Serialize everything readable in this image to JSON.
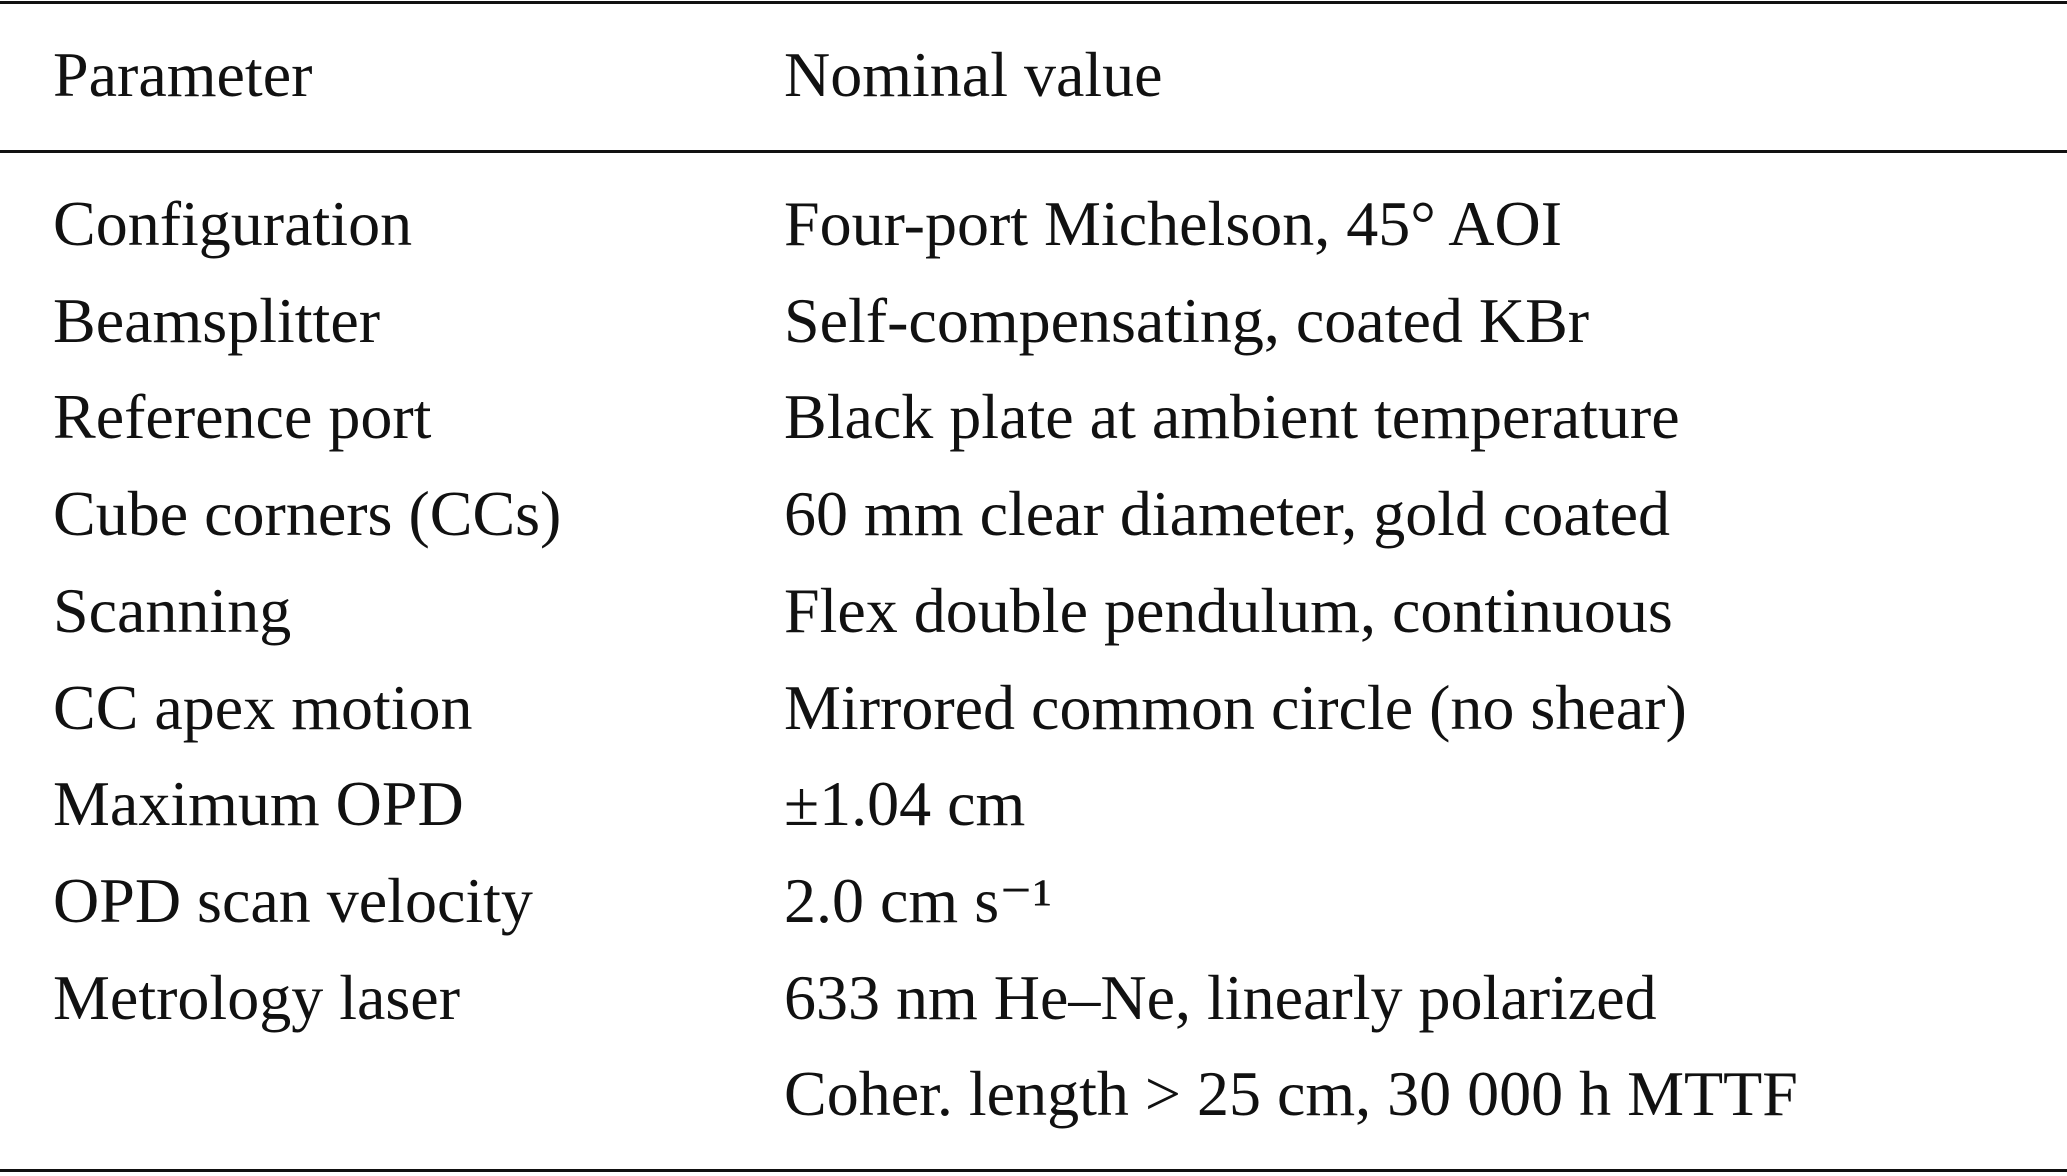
{
  "header": {
    "parameter": "Parameter",
    "value": "Nominal value"
  },
  "rows": [
    {
      "parameter": "Configuration",
      "value": "Four-port Michelson, 45° AOI"
    },
    {
      "parameter": "Beamsplitter",
      "value": "Self-compensating, coated KBr"
    },
    {
      "parameter": "Reference port",
      "value": "Black plate at ambient temperature"
    },
    {
      "parameter": "Cube corners (CCs)",
      "value": "60 mm clear diameter, gold coated"
    },
    {
      "parameter": "Scanning",
      "value": "Flex double pendulum, continuous"
    },
    {
      "parameter": "CC apex motion",
      "value": "Mirrored common circle (no shear)"
    },
    {
      "parameter": "Maximum OPD",
      "value": "±1.04 cm"
    },
    {
      "parameter": "OPD scan velocity",
      "value": "2.0 cm s⁻¹"
    },
    {
      "parameter": "Metrology laser",
      "value": "633 nm He–Ne, linearly polarized"
    },
    {
      "value": "Coher. length > 25 cm, 30 000 h MTTF"
    }
  ]
}
